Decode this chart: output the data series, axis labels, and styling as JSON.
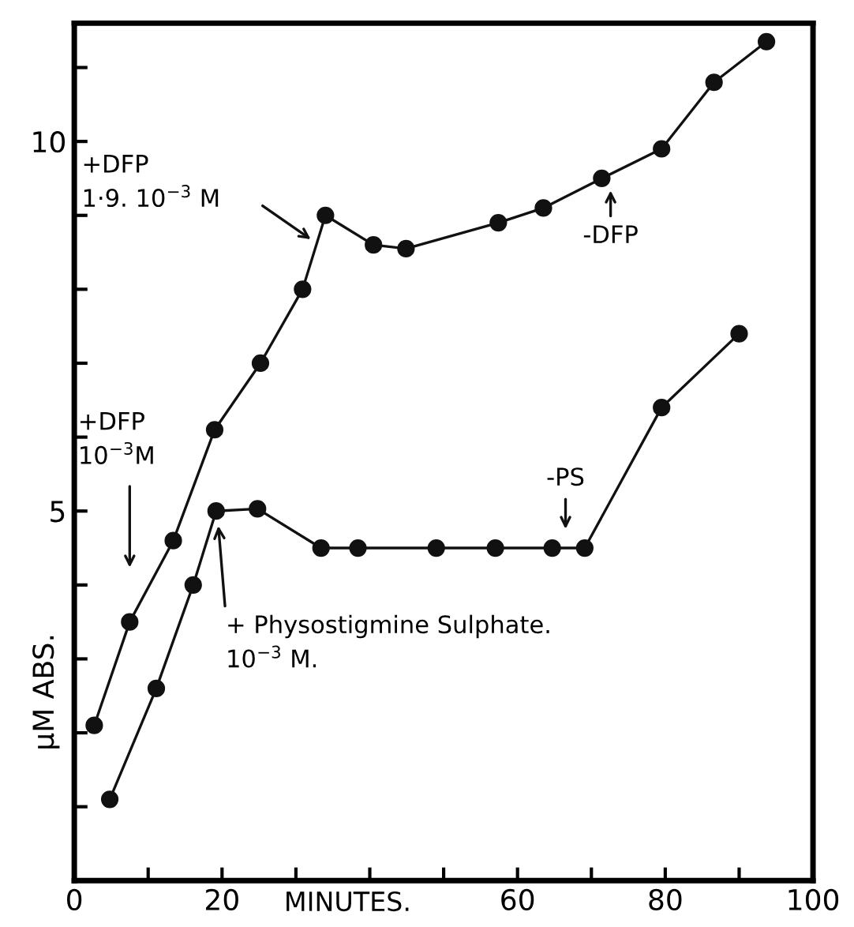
{
  "chart_data": {
    "type": "line",
    "ylabel": "μM ABS.",
    "xlabel": "MINUTES.",
    "xlim": [
      0,
      100
    ],
    "ylim": [
      0,
      11.6
    ],
    "xticks": [
      0,
      {
        "value": 10,
        "label": null
      },
      20,
      {
        "value": 30,
        "label": null
      },
      {
        "value": 40,
        "label": null
      },
      {
        "value": 50,
        "label": null
      },
      60,
      {
        "value": 70,
        "label": null
      },
      80,
      {
        "value": 90,
        "label": null
      },
      100
    ],
    "yticks": [
      {
        "value": 1,
        "label": null
      },
      {
        "value": 2,
        "label": null
      },
      {
        "value": 3,
        "label": null
      },
      {
        "value": 4,
        "label": null
      },
      5,
      {
        "value": 6,
        "label": null
      },
      {
        "value": 7,
        "label": null
      },
      {
        "value": 8,
        "label": null
      },
      {
        "value": 9,
        "label": null
      },
      10,
      {
        "value": 11,
        "label": null
      }
    ],
    "grid": false,
    "legend": false,
    "marker": "circle",
    "line_style": "solid",
    "series": [
      {
        "color": "#111111",
        "x": [
          2.7,
          7.5,
          13.4,
          19,
          25.2,
          30.9,
          34,
          40.5,
          44.9,
          57.4,
          63.5,
          71.4,
          79.5,
          86.6,
          93.7
        ],
        "values": [
          2.1,
          3.5,
          4.6,
          6.1,
          7.0,
          8.0,
          9.0,
          8.6,
          8.55,
          8.9,
          9.1,
          9.5,
          9.9,
          10.8,
          11.35
        ]
      },
      {
        "color": "#111111",
        "x": [
          4.8,
          11.1,
          16.1,
          19.2,
          24.8,
          33.4,
          38.4,
          49,
          57,
          64.7,
          69.1,
          79.5,
          90
        ],
        "values": [
          1.1,
          2.6,
          4.0,
          5.0,
          5.03,
          4.5,
          4.5,
          4.5,
          4.5,
          4.5,
          4.5,
          6.4,
          7.4
        ]
      }
    ],
    "annotations": [
      "+DFP\n10$^{−3}$M",
      "+DFP\n1·9. 10$^{−3}$ M",
      "-DFP",
      {
        "text": "+ Physostigmine Sulphate.\n10$^{−3}$ M.",
        "x": 19.5,
        "y": 4.8
      },
      "-PS"
    ]
  }
}
